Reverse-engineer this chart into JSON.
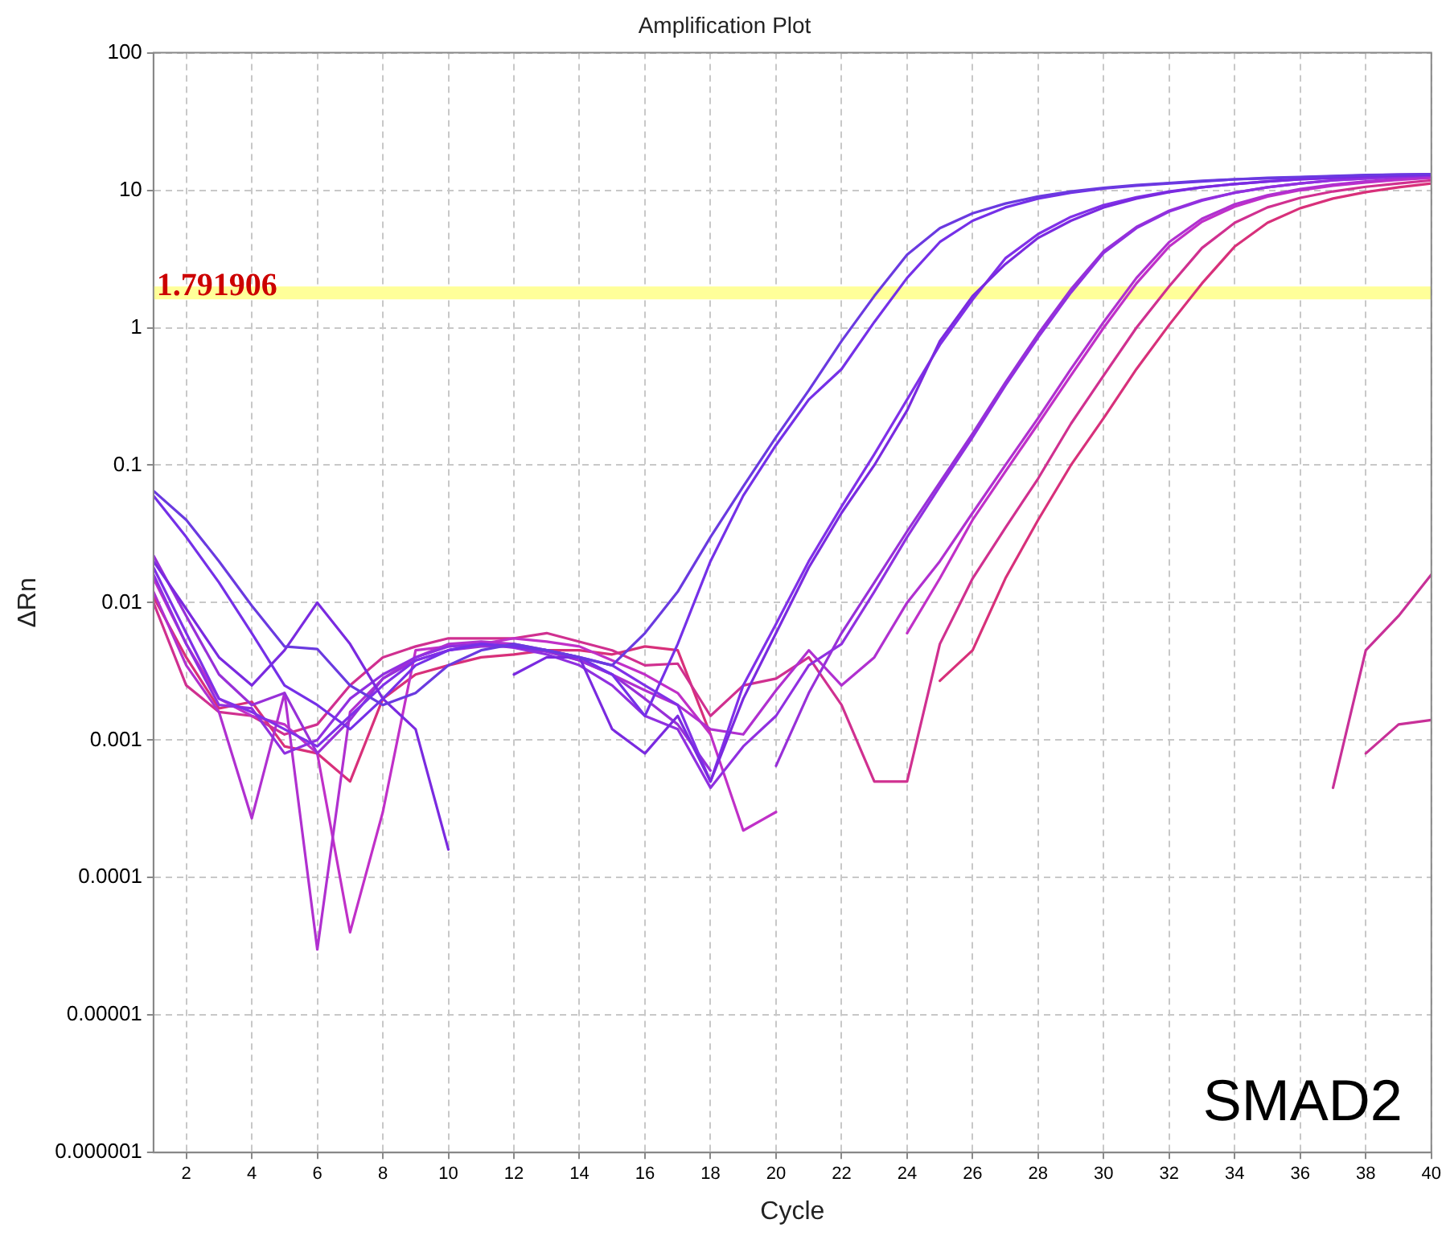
{
  "chart_data": {
    "type": "line",
    "title": "Amplification Plot",
    "xlabel": "Cycle",
    "ylabel": "ΔRn",
    "log": "y",
    "grid": true,
    "legend": false,
    "marker": "none",
    "line_style": "solid",
    "x": [
      1,
      2,
      3,
      4,
      5,
      6,
      7,
      8,
      9,
      10,
      11,
      12,
      13,
      14,
      15,
      16,
      17,
      18,
      19,
      20,
      21,
      22,
      23,
      24,
      25,
      26,
      27,
      28,
      29,
      30,
      31,
      32,
      33,
      34,
      35,
      36,
      37,
      38,
      39,
      40
    ],
    "xlim": [
      1,
      40
    ],
    "xticks": [
      2,
      4,
      6,
      8,
      10,
      12,
      14,
      16,
      18,
      20,
      22,
      24,
      26,
      28,
      30,
      32,
      34,
      36,
      38,
      40
    ],
    "ylim": [
      1e-06,
      100
    ],
    "yticks": [
      {
        "value": 1e-06,
        "label": "0.000001"
      },
      {
        "value": 1e-05,
        "label": "0.00001"
      },
      {
        "value": 0.0001,
        "label": "0.0001"
      },
      {
        "value": 0.001,
        "label": "0.001"
      },
      {
        "value": 0.01,
        "label": "0.01"
      },
      {
        "value": 0.1,
        "label": "0.1"
      },
      {
        "value": 1,
        "label": "1"
      },
      {
        "value": 10,
        "label": "10"
      },
      {
        "value": 100,
        "label": "100"
      }
    ],
    "series": [
      {
        "color": "#6a3ae0",
        "values": [
          0.065,
          0.04,
          0.02,
          0.0095,
          0.0048,
          0.0046,
          0.0025,
          0.0018,
          0.0022,
          0.0035,
          0.0045,
          0.005,
          0.0045,
          0.004,
          0.0035,
          0.006,
          0.012,
          0.03,
          0.07,
          0.16,
          0.35,
          0.8,
          1.7,
          3.4,
          5.3,
          6.8,
          8,
          9,
          9.8,
          10.4,
          10.9,
          11.3,
          11.7,
          12,
          12.3,
          12.5,
          12.7,
          12.9,
          13,
          13.1
        ]
      },
      {
        "color": "#7530e8",
        "values": [
          0.06,
          0.03,
          0.014,
          0.006,
          0.0025,
          0.0018,
          0.0012,
          0.002,
          0.0035,
          0.0045,
          0.005,
          0.0048,
          0.0045,
          0.004,
          0.003,
          0.0015,
          0.005,
          0.02,
          0.06,
          0.14,
          0.3,
          0.5,
          1.1,
          2.3,
          4.2,
          6,
          7.5,
          8.7,
          9.6,
          10.3,
          10.8,
          11.2,
          11.6,
          12,
          12.2,
          12.4,
          12.6,
          12.8,
          13,
          13.1
        ]
      },
      {
        "color": "#7a2ae0",
        "values": [
          0.02,
          0.009,
          0.004,
          0.0025,
          0.0045,
          0.01,
          0.005,
          0.002,
          0.0012,
          0.00016,
          null,
          0.003,
          0.004,
          0.004,
          0.0012,
          0.0008,
          0.0015,
          0.0005,
          0.002,
          0.006,
          0.018,
          0.045,
          0.1,
          0.25,
          0.8,
          1.7,
          2.9,
          4.5,
          6,
          7.5,
          8.7,
          9.7,
          10.5,
          11.1,
          11.6,
          12,
          12.3,
          12.6,
          12.8,
          13
        ]
      },
      {
        "color": "#8030e8",
        "values": [
          0.018,
          0.006,
          0.002,
          0.0016,
          0.0012,
          0.0009,
          0.0015,
          0.0025,
          0.0038,
          0.0045,
          0.005,
          0.0048,
          0.0045,
          0.004,
          0.0035,
          0.0025,
          0.0018,
          0.0005,
          0.0025,
          0.007,
          0.02,
          0.05,
          0.12,
          0.3,
          0.75,
          1.6,
          3.2,
          4.8,
          6.4,
          7.8,
          8.9,
          9.8,
          10.5,
          11.1,
          11.6,
          12,
          12.3,
          12.6,
          12.8,
          13
        ]
      },
      {
        "color": "#9030e0",
        "values": [
          0.016,
          0.005,
          0.0018,
          0.0017,
          0.0008,
          0.001,
          0.002,
          0.003,
          0.004,
          0.0048,
          0.005,
          0.0047,
          0.0042,
          0.0035,
          0.0025,
          0.0015,
          0.0012,
          0.00045,
          0.0009,
          0.0015,
          0.0035,
          0.005,
          0.012,
          0.03,
          0.07,
          0.16,
          0.38,
          0.85,
          1.8,
          3.5,
          5.3,
          7,
          8.4,
          9.6,
          10.5,
          11.2,
          11.8,
          12.2,
          12.5,
          12.8
        ]
      },
      {
        "color": "#9830d8",
        "values": [
          0.022,
          0.008,
          0.003,
          0.0018,
          0.0022,
          0.0008,
          0.0014,
          0.0028,
          0.0038,
          0.0045,
          0.0048,
          0.0048,
          0.0044,
          0.0038,
          0.003,
          0.002,
          0.0013,
          0.0006,
          null,
          0.00065,
          0.0022,
          0.006,
          0.014,
          0.033,
          0.075,
          0.17,
          0.4,
          0.9,
          1.9,
          3.6,
          5.4,
          7.1,
          8.5,
          9.6,
          10.5,
          11.2,
          11.8,
          12.2,
          12.5,
          12.8
        ]
      },
      {
        "color": "#b030d0",
        "values": [
          0.012,
          0.0035,
          0.0016,
          0.00027,
          0.0022,
          3e-05,
          0.0016,
          0.0028,
          0.004,
          0.005,
          0.0052,
          0.005,
          0.0045,
          0.0038,
          0.003,
          0.0023,
          0.0018,
          0.0012,
          0.0011,
          0.0023,
          0.0045,
          0.0025,
          0.004,
          0.01,
          0.02,
          0.045,
          0.1,
          0.22,
          0.5,
          1.1,
          2.3,
          4.2,
          6.2,
          7.9,
          9.2,
          10.2,
          11,
          11.6,
          12.1,
          12.5
        ]
      },
      {
        "color": "#c030c8",
        "values": [
          0.015,
          0.005,
          0.002,
          0.0015,
          0.0013,
          0.0008,
          4e-05,
          0.0003,
          0.0045,
          0.0048,
          0.005,
          0.0055,
          0.0052,
          0.0048,
          0.0038,
          0.003,
          0.0022,
          0.0011,
          0.00022,
          0.0003,
          null,
          null,
          null,
          0.006,
          0.015,
          0.04,
          0.09,
          0.2,
          0.45,
          1,
          2.1,
          3.9,
          5.9,
          7.6,
          9,
          10,
          10.8,
          11.4,
          11.9,
          12.3
        ]
      },
      {
        "color": "#d03090",
        "values": [
          0.01,
          0.0025,
          0.0016,
          0.0015,
          0.0011,
          0.0013,
          0.0025,
          0.004,
          0.0048,
          0.0055,
          0.0055,
          0.0055,
          0.006,
          0.0052,
          0.0045,
          0.0035,
          0.0036,
          0.0015,
          0.0025,
          0.0028,
          0.004,
          0.0018,
          0.0005,
          0.0005,
          0.005,
          0.015,
          0.035,
          0.08,
          0.2,
          0.45,
          1,
          2,
          3.8,
          5.8,
          7.5,
          8.8,
          9.8,
          10.6,
          11.2,
          11.8
        ]
      },
      {
        "color": "#d8307a",
        "values": [
          0.011,
          0.004,
          0.0017,
          0.0019,
          0.0009,
          0.0008,
          0.0005,
          0.002,
          0.003,
          0.0035,
          0.004,
          0.0042,
          0.0045,
          0.0045,
          0.0042,
          0.0048,
          0.0045,
          0.0011,
          null,
          null,
          null,
          null,
          null,
          null,
          0.0027,
          0.0045,
          0.015,
          0.04,
          0.1,
          0.22,
          0.5,
          1.05,
          2.1,
          3.9,
          5.8,
          7.4,
          8.7,
          9.7,
          10.5,
          11.2
        ]
      },
      {
        "color": "#c83098",
        "x": [
          37,
          38,
          39,
          40
        ],
        "values": [
          0.00045,
          0.0045,
          0.008,
          0.016
        ]
      },
      {
        "color": "#c83098",
        "x": [
          38,
          39,
          40
        ],
        "values": [
          0.0008,
          0.0013,
          0.0014
        ]
      }
    ],
    "ref_lines": [
      {
        "axis": "y",
        "value": 1.791906,
        "label": "1.791906",
        "color": "#ffff99"
      }
    ],
    "annotations": [
      "SMAD2"
    ]
  }
}
